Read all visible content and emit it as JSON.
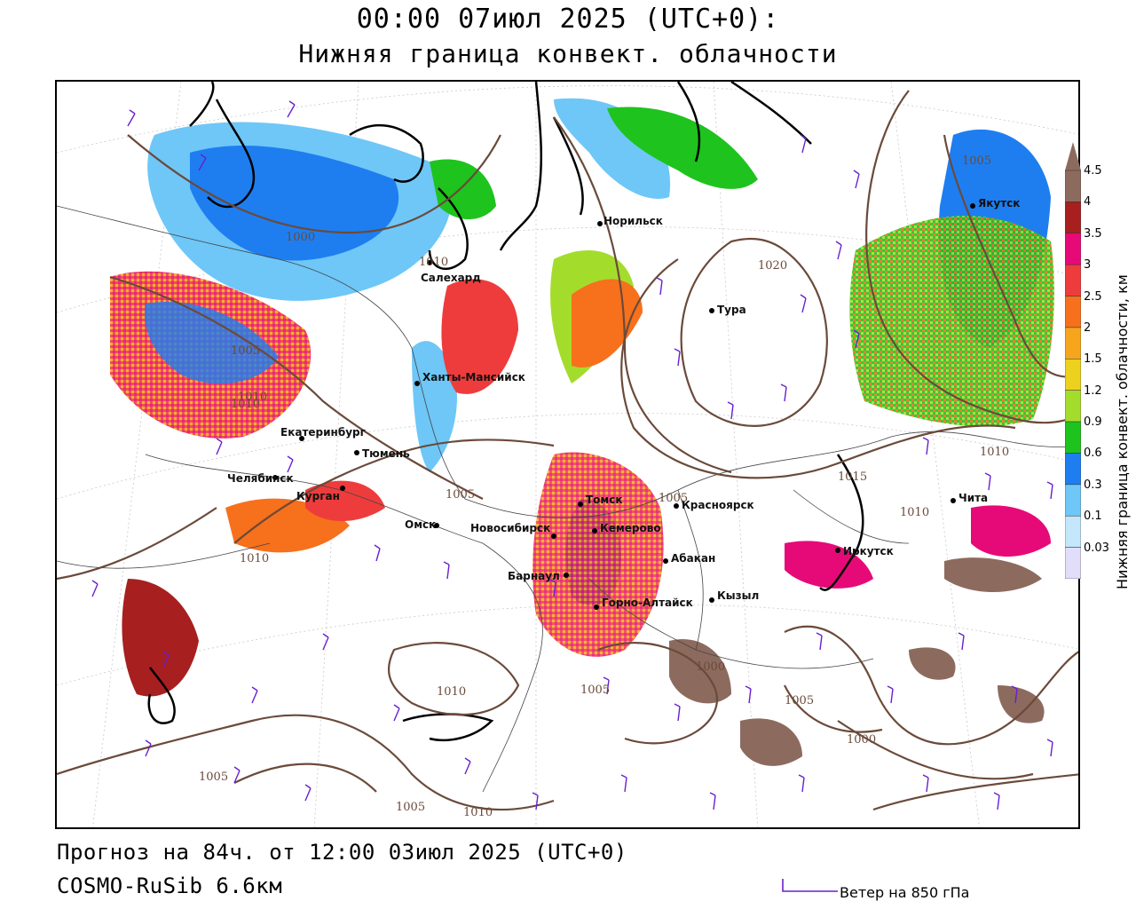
{
  "header": {
    "title_line1": "00:00 07июл 2025 (UTC+0):",
    "title_line2": "Нижняя граница конвект. облачности"
  },
  "footer": {
    "forecast": "Прогноз на 84ч. от 12:00 03июл 2025 (UTC+0)",
    "model": "COSMO-RuSib 6.6км",
    "wind_legend": "Ветер на 850 гПа"
  },
  "legend": {
    "title": "Нижняя граница конвект. облачности, км",
    "ticks": [
      "4.5",
      "4",
      "3.5",
      "3",
      "2.5",
      "2",
      "1.5",
      "1.2",
      "0.9",
      "0.6",
      "0.3",
      "0.1",
      "0.03"
    ],
    "colors": [
      "#8c6b5e",
      "#a71f1f",
      "#e60a78",
      "#ee3c3c",
      "#f7701c",
      "#f7a51c",
      "#ecd21e",
      "#a4dc2c",
      "#1ec31e",
      "#1e7ef0",
      "#6ec7f7",
      "#c4e6fb",
      "#e2defa"
    ]
  },
  "cities": [
    {
      "name": "Салехард"
    },
    {
      "name": "Норильск"
    },
    {
      "name": "Тура"
    },
    {
      "name": "Якутск"
    },
    {
      "name": "Ханты-Мансийск"
    },
    {
      "name": "Екатеринбург"
    },
    {
      "name": "Тюмень"
    },
    {
      "name": "Челябинск"
    },
    {
      "name": "Курган"
    },
    {
      "name": "Омск"
    },
    {
      "name": "Новосибирск"
    },
    {
      "name": "Томск"
    },
    {
      "name": "Кемерово"
    },
    {
      "name": "Красноярск"
    },
    {
      "name": "Барнаул"
    },
    {
      "name": "Абакан"
    },
    {
      "name": "Горно-Алтайск"
    },
    {
      "name": "Кызыл"
    },
    {
      "name": "Иркутск"
    },
    {
      "name": "Чита"
    }
  ],
  "isobars": [
    "1005",
    "1010",
    "1005",
    "1010",
    "1010",
    "1010",
    "1005",
    "1010",
    "1005",
    "1000",
    "1005",
    "1000",
    "1010",
    "1005",
    "1005",
    "1010",
    "1005",
    "1000",
    "1015",
    "1010",
    "1020"
  ]
}
